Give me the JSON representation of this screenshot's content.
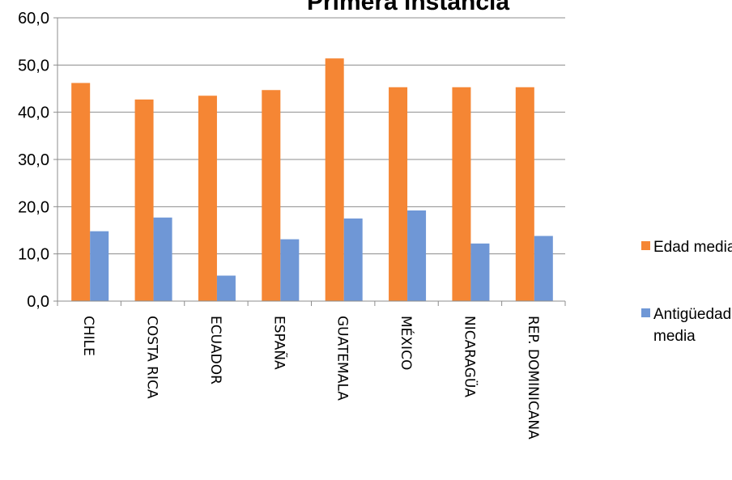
{
  "chart_data": {
    "type": "bar",
    "title": "Primera instancia",
    "categories": [
      "CHILE",
      "COSTA RICA",
      "ECUADOR",
      "ESPAÑA",
      "GUATEMALA",
      "MÉXICO",
      "NICARAGÜA",
      "REP. DOMINICANA"
    ],
    "series": [
      {
        "name": "Edad media",
        "color": "#f58634",
        "values": [
          46.2,
          42.7,
          43.5,
          44.7,
          51.4,
          45.3,
          45.3,
          45.3
        ]
      },
      {
        "name": "Antigüedad media",
        "color": "#6f97d6",
        "values": [
          14.8,
          17.7,
          5.4,
          13.1,
          17.5,
          19.2,
          12.2,
          13.8
        ]
      }
    ],
    "ylim": [
      0,
      60
    ],
    "yticks": [
      "0,0",
      "10,0",
      "20,0",
      "30,0",
      "40,0",
      "50,0",
      "60,0"
    ],
    "ytick_values": [
      0,
      10,
      20,
      30,
      40,
      50,
      60
    ],
    "grid": true,
    "legend_position": "right"
  }
}
